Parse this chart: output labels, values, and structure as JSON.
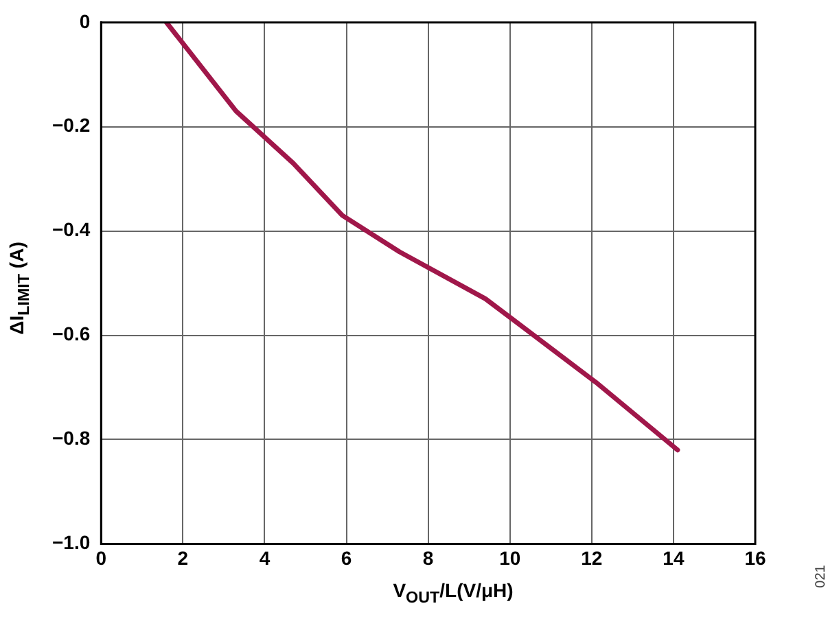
{
  "chart_data": {
    "type": "line",
    "xlabel": "V$_{OUT}$/L(V/μH)",
    "ylabel": "ΔI$_{LIMIT}$ (A)",
    "annotations": [
      "021"
    ],
    "x": [
      1.6,
      3.3,
      4.7,
      5.9,
      7.3,
      9.4,
      12.1,
      14.1
    ],
    "series": [
      {
        "color": "#a0174a",
        "values": [
          0,
          -0.17,
          -0.27,
          -0.37,
          -0.44,
          -0.53,
          -0.69,
          -0.82
        ]
      }
    ],
    "xlim": [
      0,
      16
    ],
    "xticks": [
      0,
      2,
      4,
      6,
      8,
      10,
      12,
      14,
      16
    ],
    "ylim": [
      -1,
      0
    ],
    "yticks": [
      {
        "value": -1,
        "label": "−1.0"
      },
      {
        "value": -0.8,
        "label": "−0.8"
      },
      {
        "value": -0.6,
        "label": "−0.6"
      },
      {
        "value": -0.4,
        "label": "−0.4"
      },
      {
        "value": -0.2,
        "label": "−0.2"
      },
      {
        "value": 0,
        "label": "0"
      }
    ],
    "grid": true,
    "legend": false,
    "marker": "none",
    "line_style": "solid"
  }
}
